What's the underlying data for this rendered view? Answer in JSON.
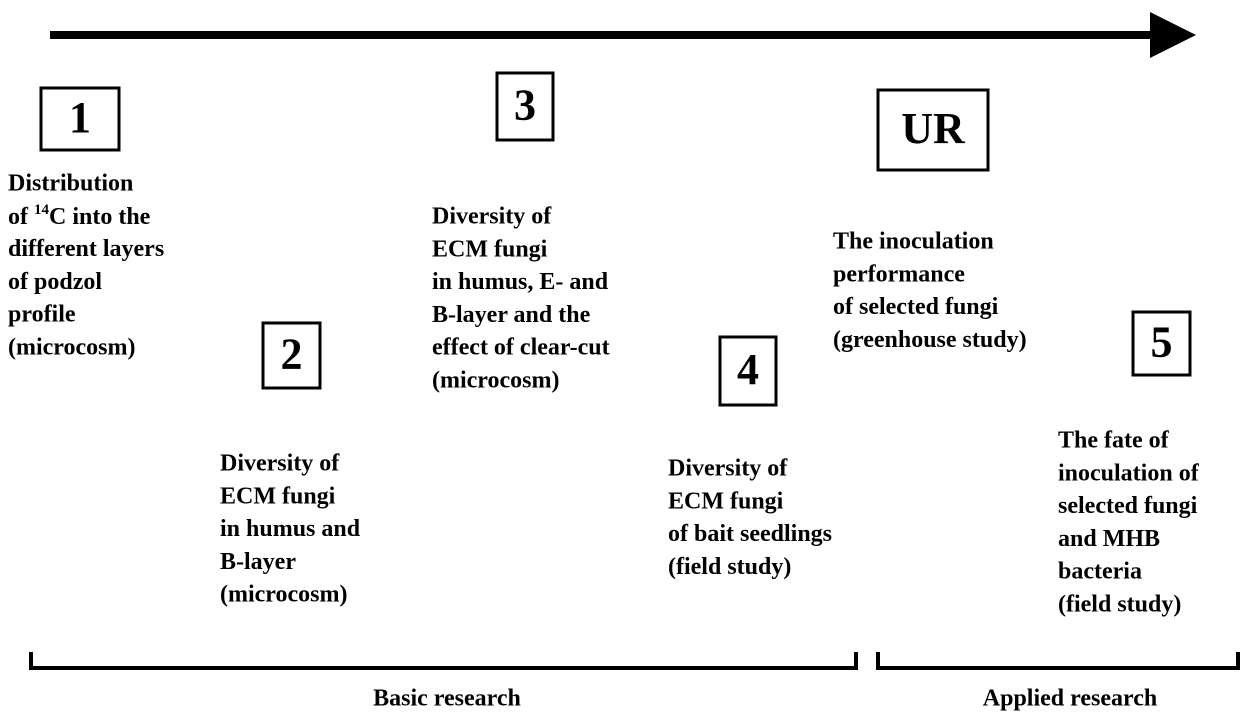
{
  "nodes": [
    {
      "label": "1",
      "lines": [
        "Distribution",
        {
          "parts": [
            "of ",
            "14",
            "C into the"
          ]
        },
        "different layers",
        "of podzol",
        "profile",
        "(microcosm)"
      ]
    },
    {
      "label": "2",
      "lines": [
        "Diversity of",
        "ECM fungi",
        "in humus and",
        "B-layer",
        "(microcosm)"
      ]
    },
    {
      "label": "3",
      "lines": [
        "Diversity of",
        "ECM fungi",
        "in humus, E- and",
        "B-layer and the",
        "effect of clear-cut",
        "(microcosm)"
      ]
    },
    {
      "label": "4",
      "lines": [
        "Diversity of",
        "ECM fungi",
        "of bait seedlings",
        "(field study)"
      ]
    },
    {
      "label": "UR",
      "lines": [
        "The inoculation",
        "performance",
        "of selected fungi",
        "(greenhouse study)"
      ]
    },
    {
      "label": "5",
      "lines": [
        "The fate of",
        "inoculation of",
        "selected fungi",
        "and MHB",
        "bacteria",
        "(field study)"
      ]
    }
  ],
  "brackets": [
    {
      "label": "Basic research"
    },
    {
      "label": "Applied research"
    }
  ]
}
